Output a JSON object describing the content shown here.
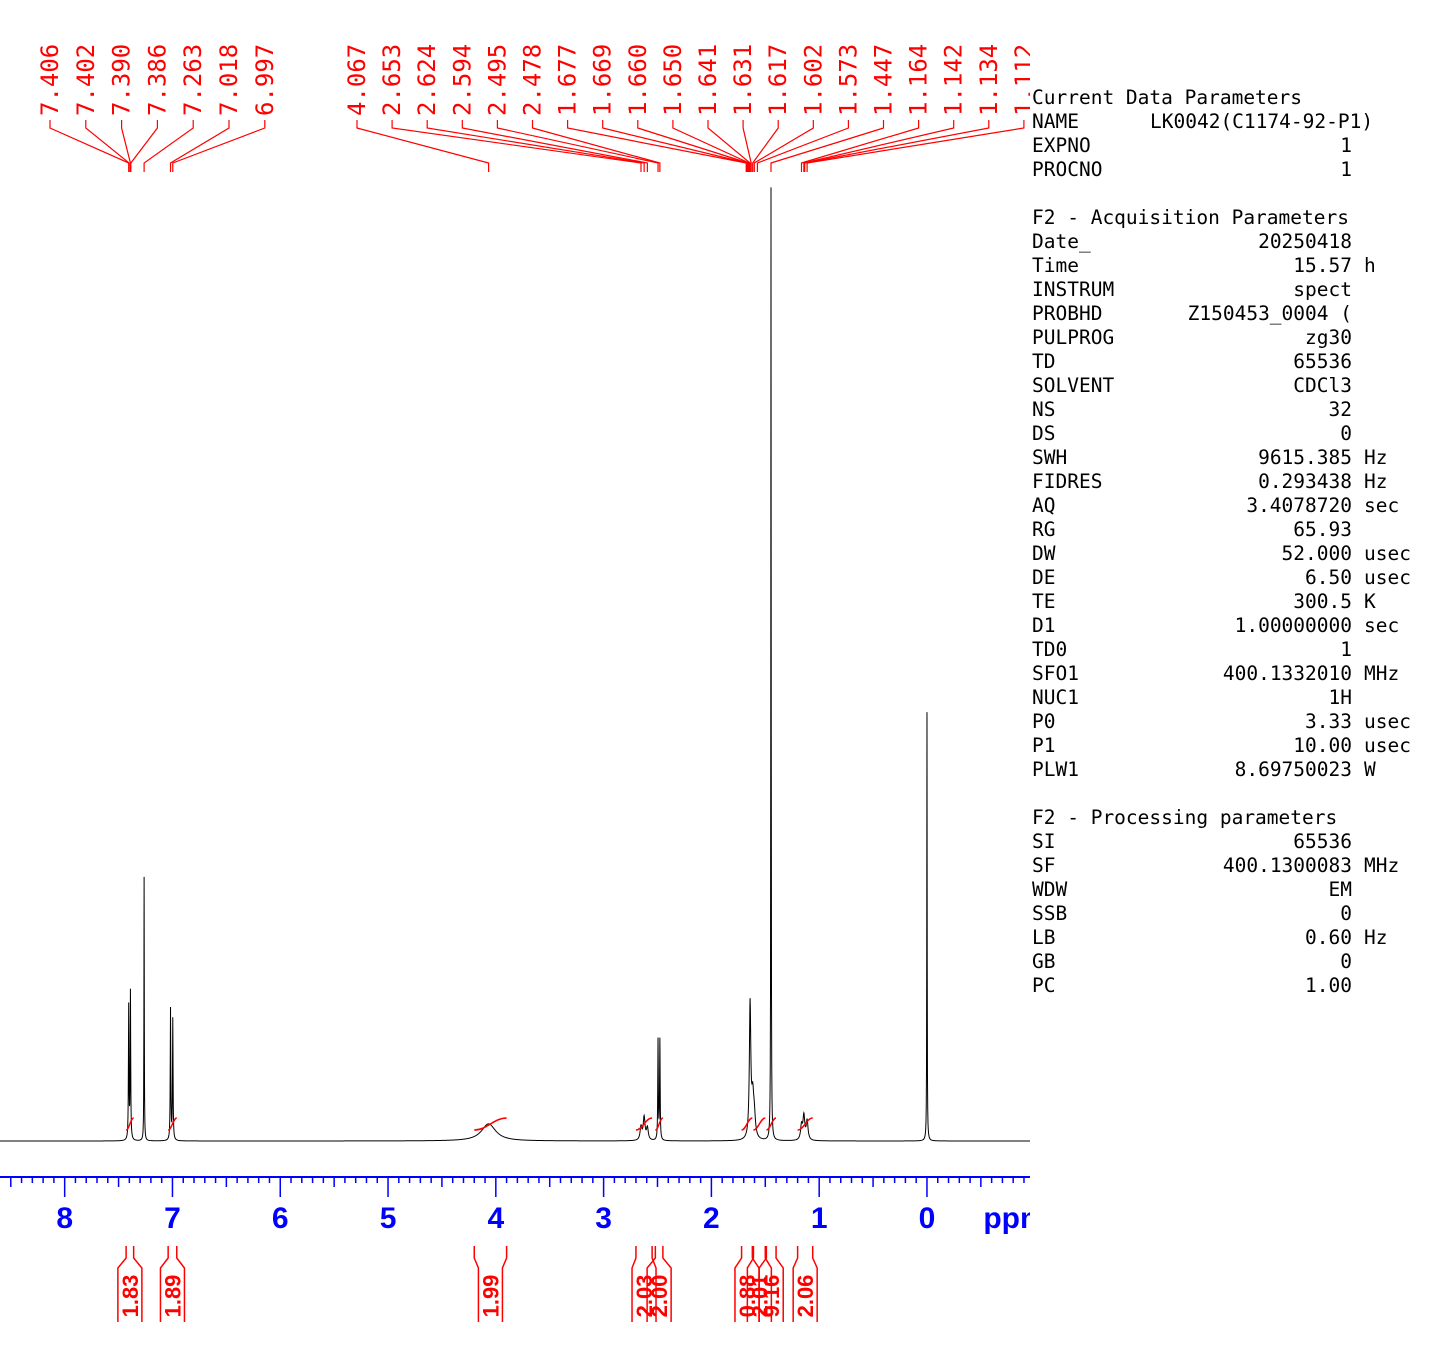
{
  "chart_data": {
    "type": "nmr-spectrum",
    "xlabel": "ppm",
    "xlim": [
      8.6,
      -1.16
    ],
    "x_ticks": [
      8,
      7,
      6,
      5,
      4,
      3,
      2,
      1,
      0
    ],
    "x_tick_labels": [
      "8",
      "7",
      "6",
      "5",
      "4",
      "3",
      "2",
      "1",
      "0"
    ],
    "peak_labels": [
      "7.406",
      "7.402",
      "7.390",
      "7.386",
      "7.263",
      "7.018",
      "6.997",
      "4.067",
      "2.653",
      "2.624",
      "2.594",
      "2.495",
      "2.478",
      "1.677",
      "1.669",
      "1.660",
      "1.650",
      "1.641",
      "1.631",
      "1.617",
      "1.602",
      "1.573",
      "1.447",
      "1.164",
      "1.142",
      "1.134",
      "1.112"
    ],
    "integrals": [
      {
        "from": 7.43,
        "to": 7.36,
        "value": "1.83"
      },
      {
        "from": 7.04,
        "to": 6.96,
        "value": "1.89"
      },
      {
        "from": 4.2,
        "to": 3.9,
        "value": "1.99"
      },
      {
        "from": 2.7,
        "to": 2.55,
        "value": "2.03"
      },
      {
        "from": 2.52,
        "to": 2.45,
        "value": "2.00"
      },
      {
        "from": 1.72,
        "to": 1.62,
        "value": "0.88"
      },
      {
        "from": 1.61,
        "to": 1.5,
        "value": "2.01"
      },
      {
        "from": 1.49,
        "to": 1.4,
        "value": "9.16"
      },
      {
        "from": 1.2,
        "to": 1.06,
        "value": "2.06"
      }
    ],
    "signals": [
      {
        "ppm": 7.406,
        "height": 0.14,
        "width": 0.003
      },
      {
        "ppm": 7.39,
        "height": 0.155,
        "width": 0.003
      },
      {
        "ppm": 7.263,
        "height": 0.277,
        "width": 0.002
      },
      {
        "ppm": 7.018,
        "height": 0.138,
        "width": 0.003
      },
      {
        "ppm": 6.997,
        "height": 0.127,
        "width": 0.003
      },
      {
        "ppm": 4.067,
        "height": 0.018,
        "width": 0.08
      },
      {
        "ppm": 2.653,
        "height": 0.014,
        "width": 0.01
      },
      {
        "ppm": 2.624,
        "height": 0.024,
        "width": 0.01
      },
      {
        "ppm": 2.594,
        "height": 0.013,
        "width": 0.01
      },
      {
        "ppm": 2.495,
        "height": 0.105,
        "width": 0.003
      },
      {
        "ppm": 2.478,
        "height": 0.105,
        "width": 0.003
      },
      {
        "ppm": 1.641,
        "height": 0.14,
        "width": 0.008
      },
      {
        "ppm": 1.617,
        "height": 0.04,
        "width": 0.012
      },
      {
        "ppm": 1.602,
        "height": 0.02,
        "width": 0.012
      },
      {
        "ppm": 1.447,
        "height": 1.0,
        "width": 0.002
      },
      {
        "ppm": 1.164,
        "height": 0.015,
        "width": 0.01
      },
      {
        "ppm": 1.142,
        "height": 0.025,
        "width": 0.01
      },
      {
        "ppm": 1.112,
        "height": 0.02,
        "width": 0.01
      },
      {
        "ppm": 0.0,
        "height": 0.45,
        "width": 0.002
      }
    ],
    "colors": {
      "spectrum": "#000000",
      "annotations": "#ff0000",
      "axis": "#0000ff"
    }
  },
  "params": {
    "current_title": "Current Data Parameters",
    "current": [
      {
        "key": "NAME",
        "value": "LK0042(C1174-92-P1)",
        "unit": ""
      },
      {
        "key": "EXPNO",
        "value": "1",
        "unit": ""
      },
      {
        "key": "PROCNO",
        "value": "1",
        "unit": ""
      }
    ],
    "acq_title": "F2 - Acquisition Parameters",
    "acq": [
      {
        "key": "Date_",
        "value": "20250418",
        "unit": ""
      },
      {
        "key": "Time",
        "value": "15.57",
        "unit": "h"
      },
      {
        "key": "INSTRUM",
        "value": "spect",
        "unit": ""
      },
      {
        "key": "PROBHD",
        "value": "Z150453_0004 (",
        "unit": ""
      },
      {
        "key": "PULPROG",
        "value": "zg30",
        "unit": ""
      },
      {
        "key": "TD",
        "value": "65536",
        "unit": ""
      },
      {
        "key": "SOLVENT",
        "value": "CDCl3",
        "unit": ""
      },
      {
        "key": "NS",
        "value": "32",
        "unit": ""
      },
      {
        "key": "DS",
        "value": "0",
        "unit": ""
      },
      {
        "key": "SWH",
        "value": "9615.385",
        "unit": "Hz"
      },
      {
        "key": "FIDRES",
        "value": "0.293438",
        "unit": "Hz"
      },
      {
        "key": "AQ",
        "value": "3.4078720",
        "unit": "sec"
      },
      {
        "key": "RG",
        "value": "65.93",
        "unit": ""
      },
      {
        "key": "DW",
        "value": "52.000",
        "unit": "usec"
      },
      {
        "key": "DE",
        "value": "6.50",
        "unit": "usec"
      },
      {
        "key": "TE",
        "value": "300.5",
        "unit": "K"
      },
      {
        "key": "D1",
        "value": "1.00000000",
        "unit": "sec"
      },
      {
        "key": "TD0",
        "value": "1",
        "unit": ""
      },
      {
        "key": "SFO1",
        "value": "400.1332010",
        "unit": "MHz"
      },
      {
        "key": "NUC1",
        "value": "1H",
        "unit": ""
      },
      {
        "key": "P0",
        "value": "3.33",
        "unit": "usec"
      },
      {
        "key": "P1",
        "value": "10.00",
        "unit": "usec"
      },
      {
        "key": "PLW1",
        "value": "8.69750023",
        "unit": "W"
      }
    ],
    "proc_title": "F2 - Processing parameters",
    "proc": [
      {
        "key": "SI",
        "value": "65536",
        "unit": ""
      },
      {
        "key": "SF",
        "value": "400.1300083",
        "unit": "MHz"
      },
      {
        "key": "WDW",
        "value": "EM",
        "unit": ""
      },
      {
        "key": "SSB",
        "value": "0",
        "unit": ""
      },
      {
        "key": "LB",
        "value": "0.60",
        "unit": "Hz"
      },
      {
        "key": "GB",
        "value": "0",
        "unit": ""
      },
      {
        "key": "PC",
        "value": "1.00",
        "unit": ""
      }
    ]
  }
}
